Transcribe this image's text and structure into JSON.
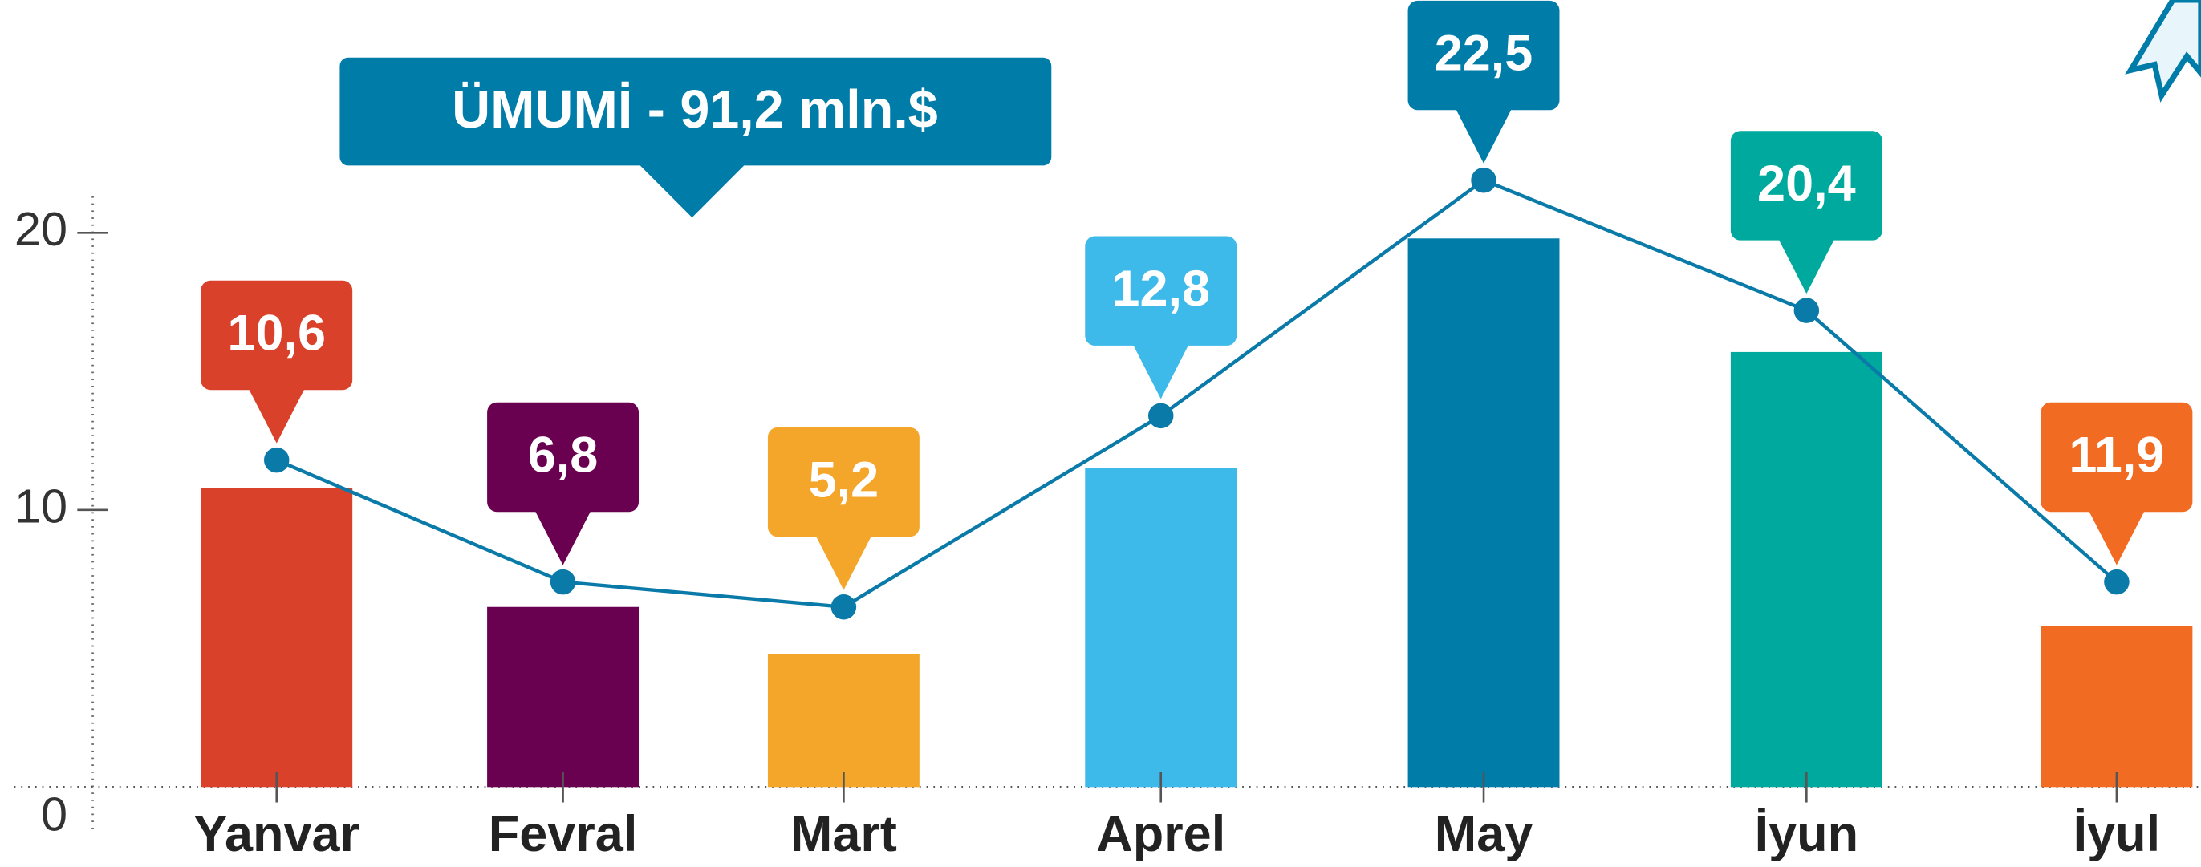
{
  "chart_data": {
    "type": "bar",
    "title": "ÜMUMİ - 91,2 mln.$",
    "categories": [
      "Yanvar",
      "Fevral",
      "Mart",
      "Aprel",
      "May",
      "İyun",
      "İyul"
    ],
    "series": [
      {
        "type": "bar",
        "colors": [
          "#d9412a",
          "#6a0050",
          "#f4a62a",
          "#3db9ea",
          "#007ca9",
          "#00a99d",
          "#f26b22"
        ],
        "values": [
          10.8,
          6.5,
          4.8,
          11.5,
          19.8,
          15.7,
          5.8
        ]
      },
      {
        "type": "line",
        "color": "#0a7aa8",
        "values": [
          11.8,
          7.4,
          6.5,
          13.4,
          21.9,
          17.2,
          7.4
        ]
      }
    ],
    "annotations": [
      "10,6",
      "6,8",
      "5,2",
      "12,8",
      "22,5",
      "20,4",
      "11,9"
    ],
    "annotation_colors": [
      "#d9412a",
      "#6a0050",
      "#f4a62a",
      "#3db9ea",
      "#007ca9",
      "#00a99d",
      "#f26b22"
    ],
    "title_color": "#007ca9",
    "ylim": [
      0,
      28
    ],
    "yticks": [
      0,
      10,
      20
    ]
  }
}
